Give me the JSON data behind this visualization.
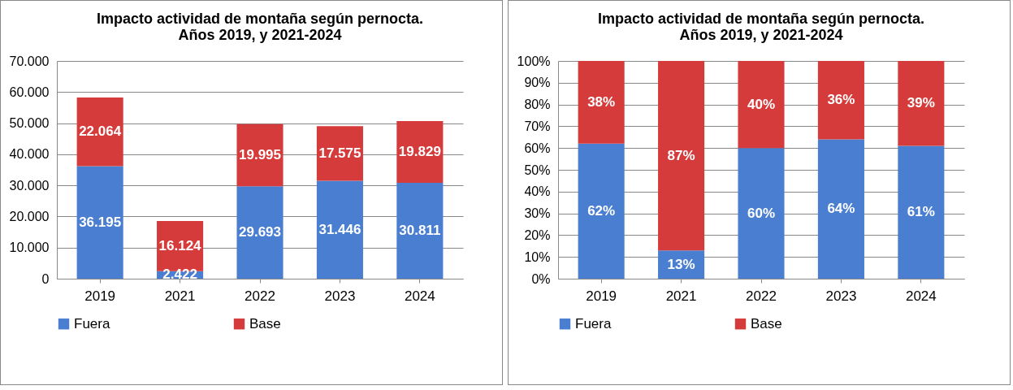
{
  "chart_data": [
    {
      "type": "bar",
      "stacked": true,
      "title": "Impacto actividad de montaña según pernocta.\nAños 2019, y 2021-2024",
      "categories": [
        "2019",
        "2021",
        "2022",
        "2023",
        "2024"
      ],
      "series": [
        {
          "name": "Fuera",
          "color": "#4a7ed0",
          "values": [
            36195,
            2422,
            29693,
            31446,
            30811
          ],
          "value_labels": [
            "36.195",
            "2.422",
            "29.693",
            "31.446",
            "30.811"
          ]
        },
        {
          "name": "Base",
          "color": "#d63b3b",
          "values": [
            22064,
            16124,
            19995,
            17575,
            19829
          ],
          "value_labels": [
            "22.064",
            "16.124",
            "19.995",
            "17.575",
            "19.829"
          ]
        }
      ],
      "ylim": [
        0,
        70000
      ],
      "yticks": [
        {
          "value": 0,
          "label": "0"
        },
        {
          "value": 10000,
          "label": "10.000"
        },
        {
          "value": 20000,
          "label": "20.000"
        },
        {
          "value": 30000,
          "label": "30.000"
        },
        {
          "value": 40000,
          "label": "40.000"
        },
        {
          "value": 50000,
          "label": "50.000"
        },
        {
          "value": 60000,
          "label": "60.000"
        },
        {
          "value": 70000,
          "label": "70.000"
        }
      ],
      "grid": "y",
      "legend": "bottom"
    },
    {
      "type": "bar",
      "stacked": true,
      "title": "Impacto actividad de montaña según pernocta.\nAños 2019, y 2021-2024",
      "categories": [
        "2019",
        "2021",
        "2022",
        "2023",
        "2024"
      ],
      "series": [
        {
          "name": "Fuera",
          "color": "#4a7ed0",
          "values": [
            62,
            13,
            60,
            64,
            61
          ],
          "value_labels": [
            "62%",
            "13%",
            "60%",
            "64%",
            "61%"
          ]
        },
        {
          "name": "Base",
          "color": "#d63b3b",
          "values": [
            38,
            87,
            40,
            36,
            39
          ],
          "value_labels": [
            "38%",
            "87%",
            "40%",
            "36%",
            "39%"
          ]
        }
      ],
      "ylim": [
        0,
        100
      ],
      "yticks": [
        {
          "value": 0,
          "label": "0%"
        },
        {
          "value": 10,
          "label": "10%"
        },
        {
          "value": 20,
          "label": "20%"
        },
        {
          "value": 30,
          "label": "30%"
        },
        {
          "value": 40,
          "label": "40%"
        },
        {
          "value": 50,
          "label": "50%"
        },
        {
          "value": 60,
          "label": "60%"
        },
        {
          "value": 70,
          "label": "70%"
        },
        {
          "value": 80,
          "label": "80%"
        },
        {
          "value": 90,
          "label": "90%"
        },
        {
          "value": 100,
          "label": "100%"
        }
      ],
      "grid": "y",
      "legend": "bottom"
    }
  ]
}
